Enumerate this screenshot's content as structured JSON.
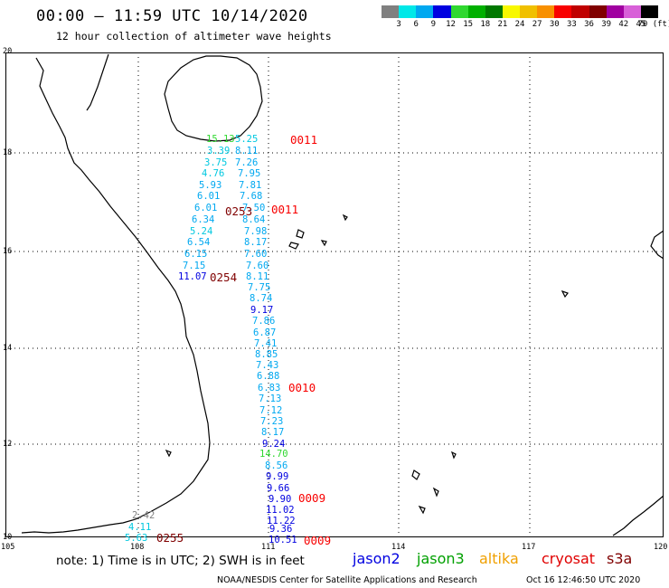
{
  "header": {
    "title": "00:00 – 11:59 UTC 10/14/2020",
    "subtitle": "12 hour collection of altimeter wave heights"
  },
  "colorbar": {
    "labels": [
      "3",
      "6",
      "9",
      "12",
      "15",
      "18",
      "21",
      "24",
      "27",
      "30",
      "33",
      "36",
      "39",
      "42",
      "45",
      "70 (ft)"
    ],
    "colors": [
      "#808080",
      "#00e8e8",
      "#00a8f0",
      "#0000e0",
      "#30d830",
      "#00b000",
      "#007800",
      "#f8f800",
      "#f0c000",
      "#f89000",
      "#f80000",
      "#c00000",
      "#800000",
      "#a000a0",
      "#d860d8",
      "#000000"
    ]
  },
  "axes": {
    "lat_labels": [
      "20",
      "18",
      "16",
      "14",
      "12",
      "10"
    ],
    "lon_labels": [
      "105",
      "108",
      "111",
      "114",
      "117",
      "120"
    ]
  },
  "track_values": [
    {
      "t": "15.13",
      "c": "#30d830"
    },
    {
      "t": "5.25",
      "c": "#00c8e0"
    },
    {
      "t": "3.39",
      "c": "#00c8e0"
    },
    {
      "t": "8.11",
      "c": "#00a8f0"
    },
    {
      "t": "3.75",
      "c": "#00c8e0"
    },
    {
      "t": "7.26",
      "c": "#00a8f0"
    },
    {
      "t": "4.76",
      "c": "#00c8e0"
    },
    {
      "t": "7.95",
      "c": "#00a8f0"
    },
    {
      "t": "5.93",
      "c": "#00a8f0"
    },
    {
      "t": "7.81",
      "c": "#00a8f0"
    },
    {
      "t": "6.01",
      "c": "#00a8f0"
    },
    {
      "t": "7.68",
      "c": "#00a8f0"
    },
    {
      "t": "6.01",
      "c": "#00a8f0"
    },
    {
      "t": "7.50",
      "c": "#00a8f0"
    },
    {
      "t": "6.34",
      "c": "#00a8f0"
    },
    {
      "t": "8.64",
      "c": "#00a8f0"
    },
    {
      "t": "5.24",
      "c": "#00c8e0"
    },
    {
      "t": "7.98",
      "c": "#00a8f0"
    },
    {
      "t": "6.54",
      "c": "#00a8f0"
    },
    {
      "t": "8.17",
      "c": "#00a8f0"
    },
    {
      "t": "6.15",
      "c": "#00a8f0"
    },
    {
      "t": "7.60",
      "c": "#00a8f0"
    },
    {
      "t": "7.15",
      "c": "#00a8f0"
    },
    {
      "t": "7.60",
      "c": "#00a8f0"
    },
    {
      "t": "11.07",
      "c": "#0000e0"
    },
    {
      "t": "8.11",
      "c": "#00a8f0"
    },
    {
      "t": "7.75",
      "c": "#00a8f0"
    },
    {
      "t": "8.74",
      "c": "#00a8f0"
    },
    {
      "t": "9.17",
      "c": "#0000e0"
    },
    {
      "t": "7.86",
      "c": "#00a8f0"
    },
    {
      "t": "6.87",
      "c": "#00a8f0"
    },
    {
      "t": "7.41",
      "c": "#00a8f0"
    },
    {
      "t": "8.85",
      "c": "#00a8f0"
    },
    {
      "t": "7.43",
      "c": "#00a8f0"
    },
    {
      "t": "6.88",
      "c": "#00a8f0"
    },
    {
      "t": "6.83",
      "c": "#00a8f0"
    },
    {
      "t": "7.13",
      "c": "#00a8f0"
    },
    {
      "t": "7.12",
      "c": "#00a8f0"
    },
    {
      "t": "7.23",
      "c": "#00a8f0"
    },
    {
      "t": "8.17",
      "c": "#00a8f0"
    },
    {
      "t": "9.24",
      "c": "#0000e0"
    },
    {
      "t": "14.70",
      "c": "#30d830"
    },
    {
      "t": "8.56",
      "c": "#00a8f0"
    },
    {
      "t": "9.99",
      "c": "#0000e0"
    },
    {
      "t": "9.66",
      "c": "#0000e0"
    },
    {
      "t": "9.90",
      "c": "#0000e0"
    },
    {
      "t": "11.02",
      "c": "#0000e0"
    },
    {
      "t": "11.22",
      "c": "#0000e0"
    },
    {
      "t": "9.36",
      "c": "#0000e0"
    },
    {
      "t": "10.51",
      "c": "#0000e0"
    },
    {
      "t": "2.42",
      "c": "#808080"
    },
    {
      "t": "4.11",
      "c": "#00c8e0"
    },
    {
      "t": "5.63",
      "c": "#00c8e0"
    }
  ],
  "time_labels": [
    {
      "t": "0011",
      "c": "#f80000"
    },
    {
      "t": "0011",
      "c": "#f80000"
    },
    {
      "t": "0253",
      "c": "#800000"
    },
    {
      "t": "0254",
      "c": "#800000"
    },
    {
      "t": "0010",
      "c": "#f80000"
    },
    {
      "t": "0009",
      "c": "#f80000"
    },
    {
      "t": "0009",
      "c": "#f80000"
    },
    {
      "t": "0255",
      "c": "#800000"
    }
  ],
  "footer": {
    "note": "note:  1) Time is in UTC;  2) SWH is in feet",
    "legend": [
      {
        "label": "jason2",
        "color": "#0000e0"
      },
      {
        "label": "jason3",
        "color": "#00a000"
      },
      {
        "label": "altika",
        "color": "#f0a000"
      },
      {
        "label": "cryosat",
        "color": "#e00000"
      },
      {
        "label": "s3a",
        "color": "#800000"
      }
    ],
    "credit": "NOAA/NESDIS Center for Satellite Applications and Research",
    "timestamp": "Oct 16 12:46:50 UTC 2020"
  }
}
